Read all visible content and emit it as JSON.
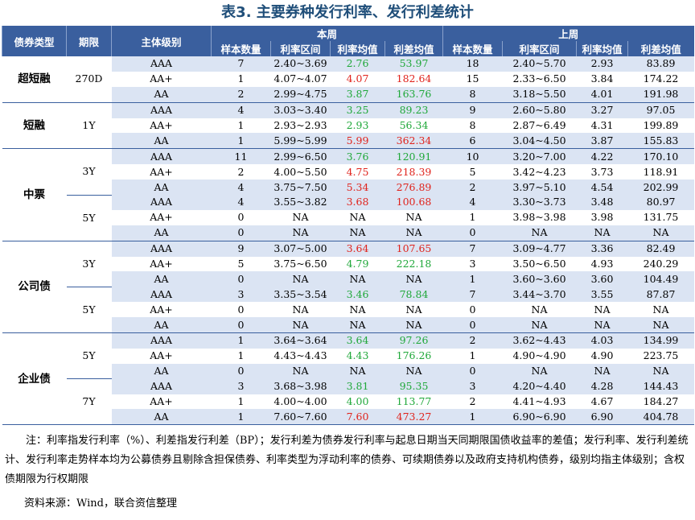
{
  "title": "表3.    主要券种发行利率、发行利差统计",
  "header": {
    "type": "债券类型",
    "term": "期限",
    "rating": "主体级别",
    "this_week": "本周",
    "last_week": "上周",
    "sub": [
      "样本数量",
      "利率区间",
      "利率均值",
      "利差均值",
      "样本数量",
      "利率区间",
      "利率均值",
      "利差均值"
    ]
  },
  "groups": [
    {
      "name": "超短融",
      "subgroups": [
        {
          "term": "270D",
          "rows": [
            {
              "rating": "AAA",
              "tw": [
                "7",
                "2.40~3.69",
                "2.76",
                "53.97"
              ],
              "tc": [
                "green",
                "green"
              ],
              "lw": [
                "18",
                "2.40~5.70",
                "2.93",
                "83.89"
              ]
            },
            {
              "rating": "AA+",
              "tw": [
                "1",
                "4.07~4.07",
                "4.07",
                "182.64"
              ],
              "tc": [
                "red",
                "red"
              ],
              "lw": [
                "15",
                "2.33~6.50",
                "3.84",
                "174.22"
              ]
            },
            {
              "rating": "AA",
              "tw": [
                "2",
                "2.99~4.75",
                "3.87",
                "163.76"
              ],
              "tc": [
                "green",
                "green"
              ],
              "lw": [
                "8",
                "3.18~5.50",
                "4.01",
                "191.98"
              ]
            }
          ]
        }
      ]
    },
    {
      "name": "短融",
      "subgroups": [
        {
          "term": "1Y",
          "rows": [
            {
              "rating": "AAA",
              "tw": [
                "4",
                "3.03~3.40",
                "3.25",
                "89.23"
              ],
              "tc": [
                "green",
                "green"
              ],
              "lw": [
                "9",
                "2.60~5.80",
                "3.27",
                "97.05"
              ]
            },
            {
              "rating": "AA+",
              "tw": [
                "1",
                "2.93~2.93",
                "2.93",
                "56.34"
              ],
              "tc": [
                "green",
                "green"
              ],
              "lw": [
                "8",
                "2.87~6.49",
                "4.31",
                "199.89"
              ]
            },
            {
              "rating": "AA",
              "tw": [
                "1",
                "5.99~5.99",
                "5.99",
                "362.34"
              ],
              "tc": [
                "red",
                "red"
              ],
              "lw": [
                "6",
                "3.04~4.50",
                "3.87",
                "155.83"
              ]
            }
          ]
        }
      ]
    },
    {
      "name": "中票",
      "subgroups": [
        {
          "term": "3Y",
          "rows": [
            {
              "rating": "AAA",
              "tw": [
                "11",
                "2.99~6.50",
                "3.76",
                "120.91"
              ],
              "tc": [
                "green",
                "green"
              ],
              "lw": [
                "10",
                "3.20~7.00",
                "4.22",
                "170.10"
              ]
            },
            {
              "rating": "AA+",
              "tw": [
                "2",
                "4.00~5.50",
                "4.75",
                "218.39"
              ],
              "tc": [
                "red",
                "red"
              ],
              "lw": [
                "5",
                "3.42~4.23",
                "3.73",
                "118.91"
              ]
            },
            {
              "rating": "AA",
              "tw": [
                "4",
                "3.75~7.50",
                "5.34",
                "276.89"
              ],
              "tc": [
                "red",
                "red"
              ],
              "lw": [
                "2",
                "3.97~5.10",
                "4.54",
                "202.99"
              ]
            }
          ]
        },
        {
          "term": "5Y",
          "rows": [
            {
              "rating": "AAA",
              "tw": [
                "4",
                "3.55~3.82",
                "3.68",
                "100.68"
              ],
              "tc": [
                "red",
                "red"
              ],
              "lw": [
                "4",
                "3.30~3.73",
                "3.48",
                "80.97"
              ]
            },
            {
              "rating": "AA+",
              "tw": [
                "0",
                "NA",
                "NA",
                "NA"
              ],
              "tc": [
                "",
                ""
              ],
              "lw": [
                "1",
                "3.98~3.98",
                "3.98",
                "131.75"
              ]
            },
            {
              "rating": "AA",
              "tw": [
                "0",
                "NA",
                "NA",
                "NA"
              ],
              "tc": [
                "",
                ""
              ],
              "lw": [
                "0",
                "NA",
                "NA",
                "NA"
              ]
            }
          ]
        }
      ]
    },
    {
      "name": "公司债",
      "subgroups": [
        {
          "term": "3Y",
          "rows": [
            {
              "rating": "AAA",
              "tw": [
                "9",
                "3.07~5.00",
                "3.64",
                "107.65"
              ],
              "tc": [
                "red",
                "red"
              ],
              "lw": [
                "7",
                "3.09~4.77",
                "3.36",
                "82.49"
              ]
            },
            {
              "rating": "AA+",
              "tw": [
                "5",
                "3.75~6.50",
                "4.79",
                "222.18"
              ],
              "tc": [
                "green",
                "green"
              ],
              "lw": [
                "3",
                "3.50~6.50",
                "4.93",
                "240.29"
              ]
            },
            {
              "rating": "AA",
              "tw": [
                "0",
                "NA",
                "NA",
                "NA"
              ],
              "tc": [
                "",
                ""
              ],
              "lw": [
                "1",
                "3.60~3.60",
                "3.60",
                "104.49"
              ]
            }
          ]
        },
        {
          "term": "5Y",
          "rows": [
            {
              "rating": "AAA",
              "tw": [
                "3",
                "3.35~3.54",
                "3.46",
                "78.84"
              ],
              "tc": [
                "green",
                "green"
              ],
              "lw": [
                "7",
                "3.44~3.70",
                "3.55",
                "87.87"
              ]
            },
            {
              "rating": "AA+",
              "tw": [
                "0",
                "NA",
                "NA",
                "NA"
              ],
              "tc": [
                "",
                ""
              ],
              "lw": [
                "0",
                "NA",
                "NA",
                "NA"
              ]
            },
            {
              "rating": "AA",
              "tw": [
                "0",
                "NA",
                "NA",
                "NA"
              ],
              "tc": [
                "",
                ""
              ],
              "lw": [
                "0",
                "NA",
                "NA",
                "NA"
              ]
            }
          ]
        }
      ]
    },
    {
      "name": "企业债",
      "subgroups": [
        {
          "term": "5Y",
          "rows": [
            {
              "rating": "AAA",
              "tw": [
                "1",
                "3.64~3.64",
                "3.64",
                "97.26"
              ],
              "tc": [
                "green",
                "green"
              ],
              "lw": [
                "2",
                "3.62~4.43",
                "4.03",
                "134.99"
              ]
            },
            {
              "rating": "AA+",
              "tw": [
                "1",
                "4.43~4.43",
                "4.43",
                "176.26"
              ],
              "tc": [
                "green",
                "green"
              ],
              "lw": [
                "1",
                "4.90~4.90",
                "4.90",
                "223.75"
              ]
            },
            {
              "rating": "AA",
              "tw": [
                "0",
                "NA",
                "NA",
                "NA"
              ],
              "tc": [
                "",
                ""
              ],
              "lw": [
                "0",
                "NA",
                "NA",
                "NA"
              ]
            }
          ]
        },
        {
          "term": "7Y",
          "rows": [
            {
              "rating": "AAA",
              "tw": [
                "3",
                "3.68~3.98",
                "3.81",
                "95.35"
              ],
              "tc": [
                "green",
                "green"
              ],
              "lw": [
                "3",
                "4.20~4.40",
                "4.28",
                "144.43"
              ]
            },
            {
              "rating": "AA+",
              "tw": [
                "1",
                "4.00~4.00",
                "4.00",
                "113.77"
              ],
              "tc": [
                "green",
                "green"
              ],
              "lw": [
                "2",
                "4.41~4.93",
                "4.67",
                "184.27"
              ]
            },
            {
              "rating": "AA",
              "tw": [
                "1",
                "7.60~7.60",
                "7.60",
                "473.27"
              ],
              "tc": [
                "red",
                "red"
              ],
              "lw": [
                "1",
                "6.90~6.90",
                "6.90",
                "404.78"
              ]
            }
          ]
        }
      ]
    }
  ],
  "note": "注：利率指发行利率（%）、利差指发行利差（BP）；发行利差为债券发行利率与起息日期当天同期限国债收益率的差值；发行利率、发行利差统计、发行利率走势样本均为公募债券且剔除含担保债券、利率类型为浮动利率的债券、可续期债券以及政府支持机构债券，级别均指主体级别；含权债期限为行权期限",
  "source": "资料来源：Wind，联合资信整理",
  "colors": {
    "header_bg": "#3a5f9e",
    "row_alt": "#dbe4f3",
    "red": "#e0231c",
    "green": "#20a83a",
    "title": "#1f4e79"
  }
}
